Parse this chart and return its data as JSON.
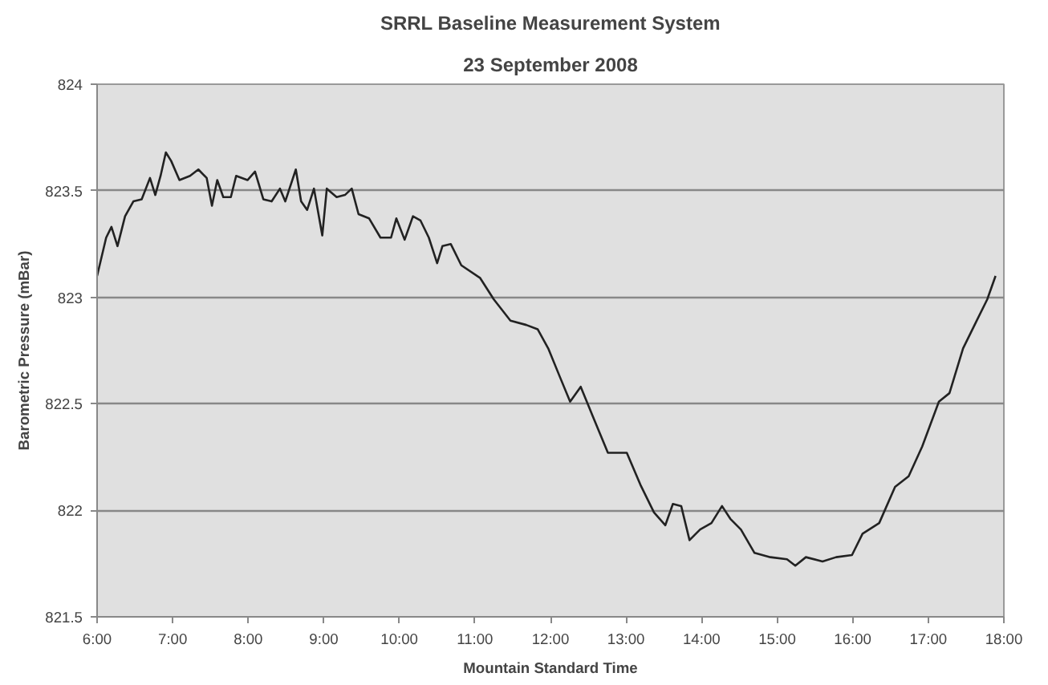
{
  "chart_data": {
    "type": "line",
    "title": "SRRL Baseline Measurement System",
    "subtitle": "23 September 2008",
    "xlabel": "Mountain Standard Time",
    "ylabel": "Barometric Pressure (mBar)",
    "xlim": [
      6,
      18
    ],
    "xticks": [
      {
        "value": 6,
        "label": "6:00"
      },
      {
        "value": 7,
        "label": "7:00"
      },
      {
        "value": 8,
        "label": "8:00"
      },
      {
        "value": 9,
        "label": "9:00"
      },
      {
        "value": 10,
        "label": "10:00"
      },
      {
        "value": 11,
        "label": "11:00"
      },
      {
        "value": 12,
        "label": "12:00"
      },
      {
        "value": 13,
        "label": "13:00"
      },
      {
        "value": 14,
        "label": "14:00"
      },
      {
        "value": 15,
        "label": "15:00"
      },
      {
        "value": 16,
        "label": "16:00"
      },
      {
        "value": 17,
        "label": "17:00"
      },
      {
        "value": 18,
        "label": "18:00"
      }
    ],
    "ylim": [
      821.5,
      824
    ],
    "yticks": [
      821.5,
      822,
      822.5,
      823,
      823.5,
      824
    ],
    "grid": "y",
    "marker": "none",
    "line_style": "solid",
    "series": [
      {
        "color": "#222222",
        "x": [
          6.0,
          6.12,
          6.19,
          6.27,
          6.37,
          6.48,
          6.59,
          6.7,
          6.77,
          6.84,
          6.91,
          6.98,
          7.09,
          7.23,
          7.34,
          7.45,
          7.52,
          7.59,
          7.67,
          7.77,
          7.84,
          7.99,
          8.09,
          8.2,
          8.31,
          8.42,
          8.49,
          8.63,
          8.7,
          8.78,
          8.87,
          8.98,
          9.04,
          9.17,
          9.28,
          9.37,
          9.46,
          9.6,
          9.75,
          9.89,
          9.96,
          10.07,
          10.18,
          10.28,
          10.39,
          10.5,
          10.57,
          10.68,
          10.82,
          11.07,
          11.25,
          11.47,
          11.68,
          11.83,
          11.97,
          12.12,
          12.26,
          12.4,
          12.55,
          12.76,
          13.01,
          13.19,
          13.37,
          13.52,
          13.62,
          13.73,
          13.84,
          13.98,
          14.13,
          14.27,
          14.38,
          14.52,
          14.7,
          14.91,
          15.13,
          15.24,
          15.38,
          15.6,
          15.78,
          15.99,
          16.13,
          16.35,
          16.56,
          16.74,
          16.92,
          17.14,
          17.28,
          17.46,
          17.64,
          17.78,
          17.89
        ],
        "values": [
          823.1,
          823.28,
          823.33,
          823.24,
          823.38,
          823.45,
          823.46,
          823.56,
          823.48,
          823.57,
          823.68,
          823.64,
          823.55,
          823.57,
          823.6,
          823.56,
          823.43,
          823.55,
          823.47,
          823.47,
          823.57,
          823.55,
          823.59,
          823.46,
          823.45,
          823.51,
          823.45,
          823.6,
          823.45,
          823.41,
          823.51,
          823.29,
          823.51,
          823.47,
          823.48,
          823.51,
          823.39,
          823.37,
          823.28,
          823.28,
          823.37,
          823.27,
          823.38,
          823.36,
          823.28,
          823.16,
          823.24,
          823.25,
          823.15,
          823.09,
          822.99,
          822.89,
          822.87,
          822.85,
          822.76,
          822.63,
          822.51,
          822.58,
          822.45,
          822.27,
          822.27,
          822.12,
          821.99,
          821.93,
          822.03,
          822.02,
          821.86,
          821.91,
          821.94,
          822.02,
          821.96,
          821.91,
          821.8,
          821.78,
          821.77,
          821.74,
          821.78,
          821.76,
          821.78,
          821.79,
          821.89,
          821.94,
          822.11,
          822.16,
          822.3,
          822.51,
          822.55,
          822.76,
          822.89,
          822.99,
          823.1
        ]
      }
    ]
  }
}
